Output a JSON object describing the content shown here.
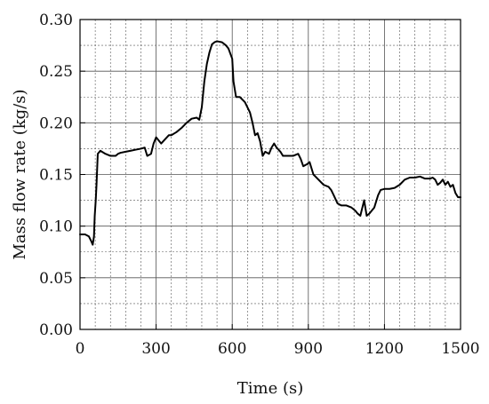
{
  "chart_data": {
    "type": "line",
    "title": "",
    "xlabel": "Time (s)",
    "ylabel": "Mass flow rate (kg/s)",
    "xlim": [
      0,
      1500
    ],
    "ylim": [
      0,
      0.3
    ],
    "x_ticks": [
      0,
      300,
      600,
      900,
      1200,
      1500
    ],
    "x_tick_labels": [
      "0",
      "300",
      "600",
      "900",
      "1200",
      "1500"
    ],
    "y_ticks": [
      0,
      0.05,
      0.1,
      0.15,
      0.2,
      0.25,
      0.3
    ],
    "y_tick_labels": [
      "0.00",
      "0.05",
      "0.10",
      "0.15",
      "0.20",
      "0.25",
      "0.30"
    ],
    "grid": "major solid, minor dashed",
    "legend": "none",
    "colors": {
      "line": "#000000",
      "grid": "#555555",
      "frame": "#000000"
    },
    "series": [
      {
        "x": [
          0,
          20,
          35,
          45,
          50,
          55,
          58,
          62,
          65,
          70,
          80,
          100,
          120,
          140,
          150,
          160,
          180,
          200,
          220,
          240,
          255,
          265,
          280,
          290,
          300,
          310,
          320,
          335,
          350,
          360,
          380,
          400,
          420,
          440,
          460,
          470,
          480,
          490,
          500,
          510,
          520,
          530,
          540,
          560,
          575,
          585,
          600,
          605,
          615,
          630,
          650,
          670,
          680,
          690,
          700,
          710,
          720,
          730,
          745,
          755,
          765,
          775,
          790,
          800,
          820,
          840,
          860,
          870,
          880,
          895,
          905,
          920,
          940,
          960,
          980,
          990,
          1000,
          1015,
          1030,
          1050,
          1070,
          1085,
          1095,
          1105,
          1115,
          1120,
          1130,
          1140,
          1160,
          1175,
          1185,
          1200,
          1220,
          1240,
          1260,
          1280,
          1300,
          1320,
          1340,
          1360,
          1380,
          1390,
          1400,
          1410,
          1420,
          1430,
          1440,
          1450,
          1460,
          1470,
          1480,
          1490,
          1500
        ],
        "y": [
          0.092,
          0.092,
          0.09,
          0.085,
          0.082,
          0.09,
          0.11,
          0.125,
          0.14,
          0.17,
          0.173,
          0.17,
          0.168,
          0.168,
          0.17,
          0.171,
          0.172,
          0.173,
          0.174,
          0.175,
          0.176,
          0.168,
          0.17,
          0.18,
          0.186,
          0.183,
          0.18,
          0.184,
          0.188,
          0.188,
          0.191,
          0.195,
          0.2,
          0.204,
          0.205,
          0.203,
          0.215,
          0.24,
          0.257,
          0.268,
          0.276,
          0.278,
          0.279,
          0.278,
          0.275,
          0.272,
          0.262,
          0.24,
          0.225,
          0.225,
          0.22,
          0.21,
          0.2,
          0.188,
          0.19,
          0.182,
          0.168,
          0.172,
          0.17,
          0.176,
          0.18,
          0.176,
          0.172,
          0.168,
          0.168,
          0.168,
          0.17,
          0.165,
          0.158,
          0.16,
          0.162,
          0.15,
          0.145,
          0.14,
          0.138,
          0.135,
          0.13,
          0.122,
          0.12,
          0.12,
          0.118,
          0.115,
          0.112,
          0.11,
          0.12,
          0.125,
          0.11,
          0.112,
          0.118,
          0.13,
          0.135,
          0.136,
          0.136,
          0.137,
          0.14,
          0.145,
          0.147,
          0.147,
          0.148,
          0.146,
          0.146,
          0.147,
          0.145,
          0.14,
          0.142,
          0.145,
          0.14,
          0.143,
          0.138,
          0.14,
          0.132,
          0.128,
          0.128
        ]
      }
    ]
  }
}
